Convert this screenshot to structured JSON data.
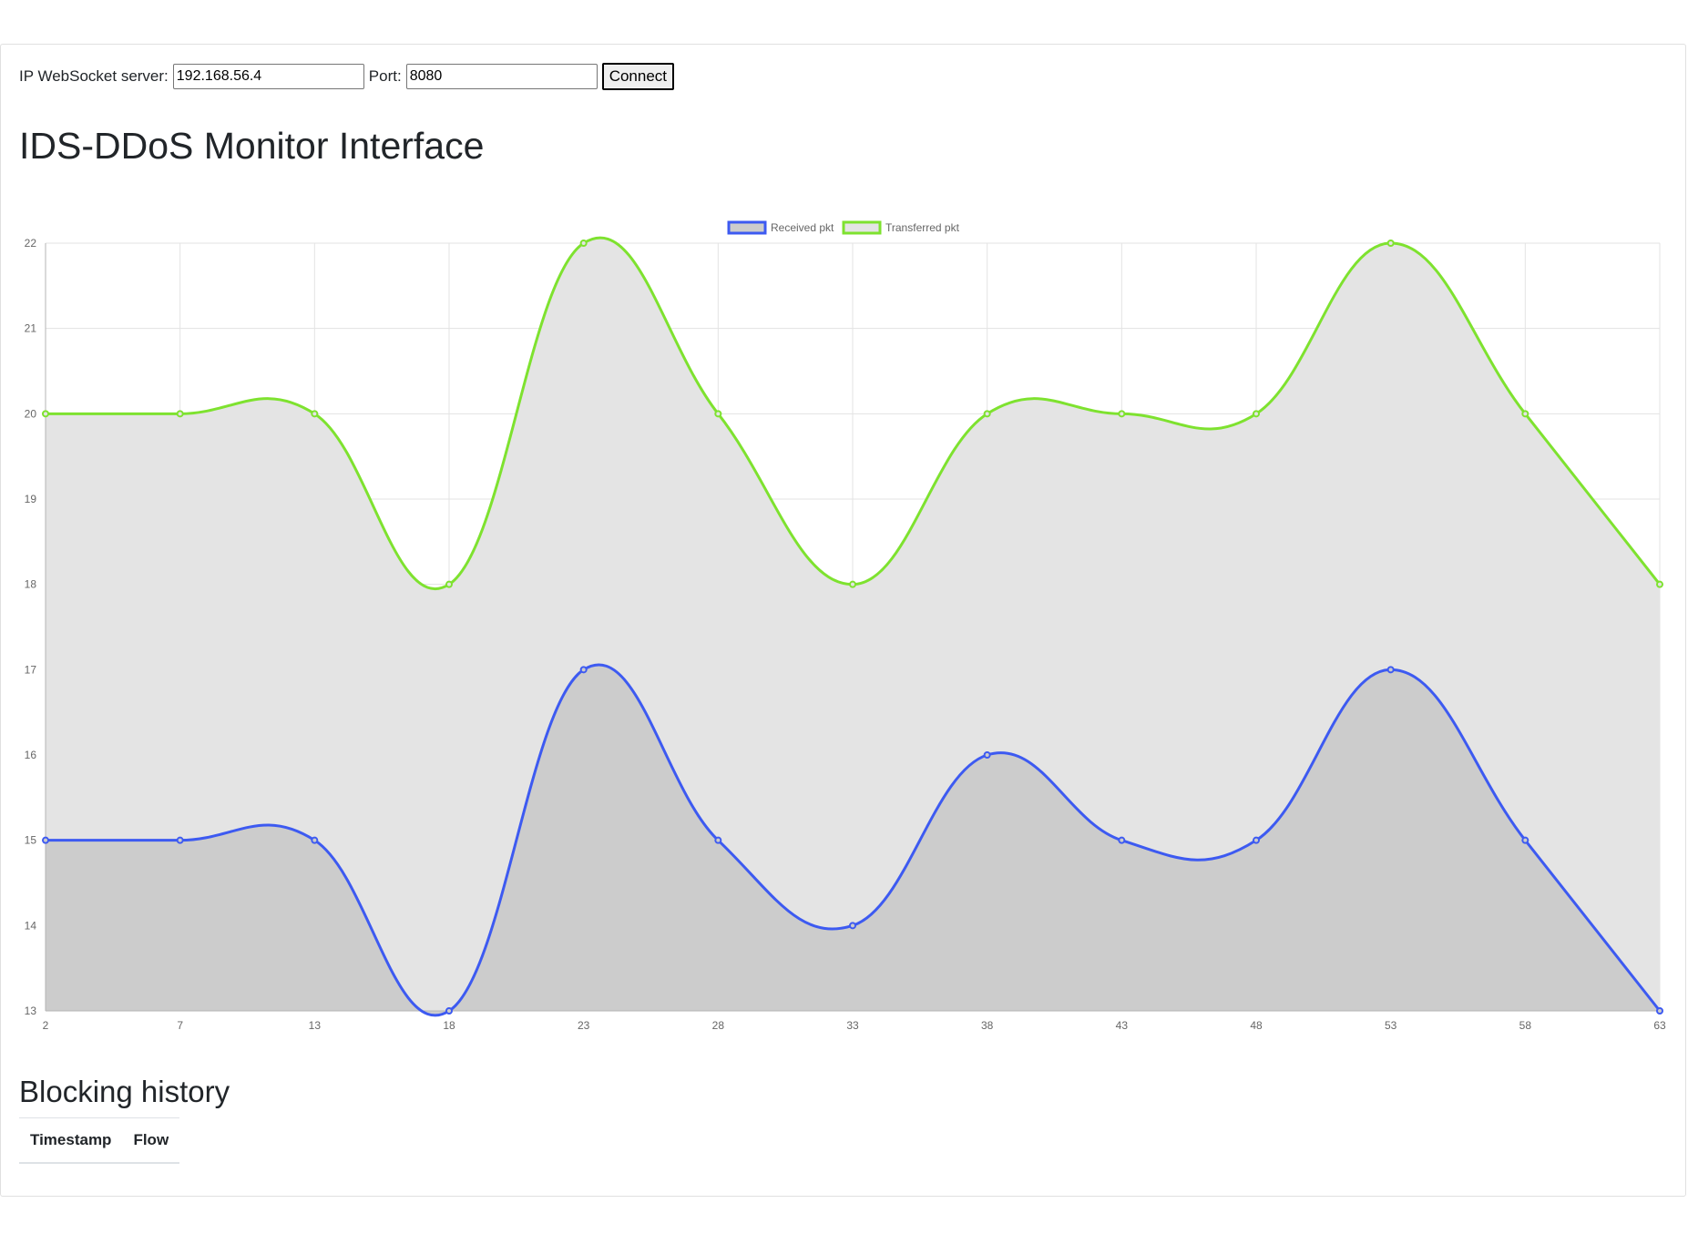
{
  "connection": {
    "ip_label": "IP WebSocket server:",
    "ip_value": "192.168.56.4",
    "port_label": "Port:",
    "port_value": "8080",
    "connect_label": "Connect"
  },
  "page_title": "IDS-DDoS Monitor Interface",
  "chart_data": {
    "type": "line",
    "x": [
      2,
      7,
      13,
      18,
      23,
      28,
      33,
      38,
      43,
      48,
      53,
      58,
      63
    ],
    "series": [
      {
        "name": "Received pkt",
        "color": "#3d5af1",
        "fill": "#cccccc",
        "values": [
          15,
          15,
          15,
          13,
          17,
          15,
          14,
          16,
          15,
          15,
          17,
          15,
          13
        ]
      },
      {
        "name": "Transferred pkt",
        "color": "#7ee22f",
        "fill": "#e4e4e4",
        "values": [
          20,
          20,
          20,
          18,
          22,
          20,
          18,
          20,
          20,
          20,
          22,
          20,
          18
        ]
      }
    ],
    "ylim": [
      13,
      22
    ],
    "yticks": [
      13,
      14,
      15,
      16,
      17,
      18,
      19,
      20,
      21,
      22
    ],
    "grid": true,
    "legend": "top-center"
  },
  "history": {
    "title": "Blocking history",
    "columns": [
      "Timestamp",
      "Flow"
    ]
  }
}
